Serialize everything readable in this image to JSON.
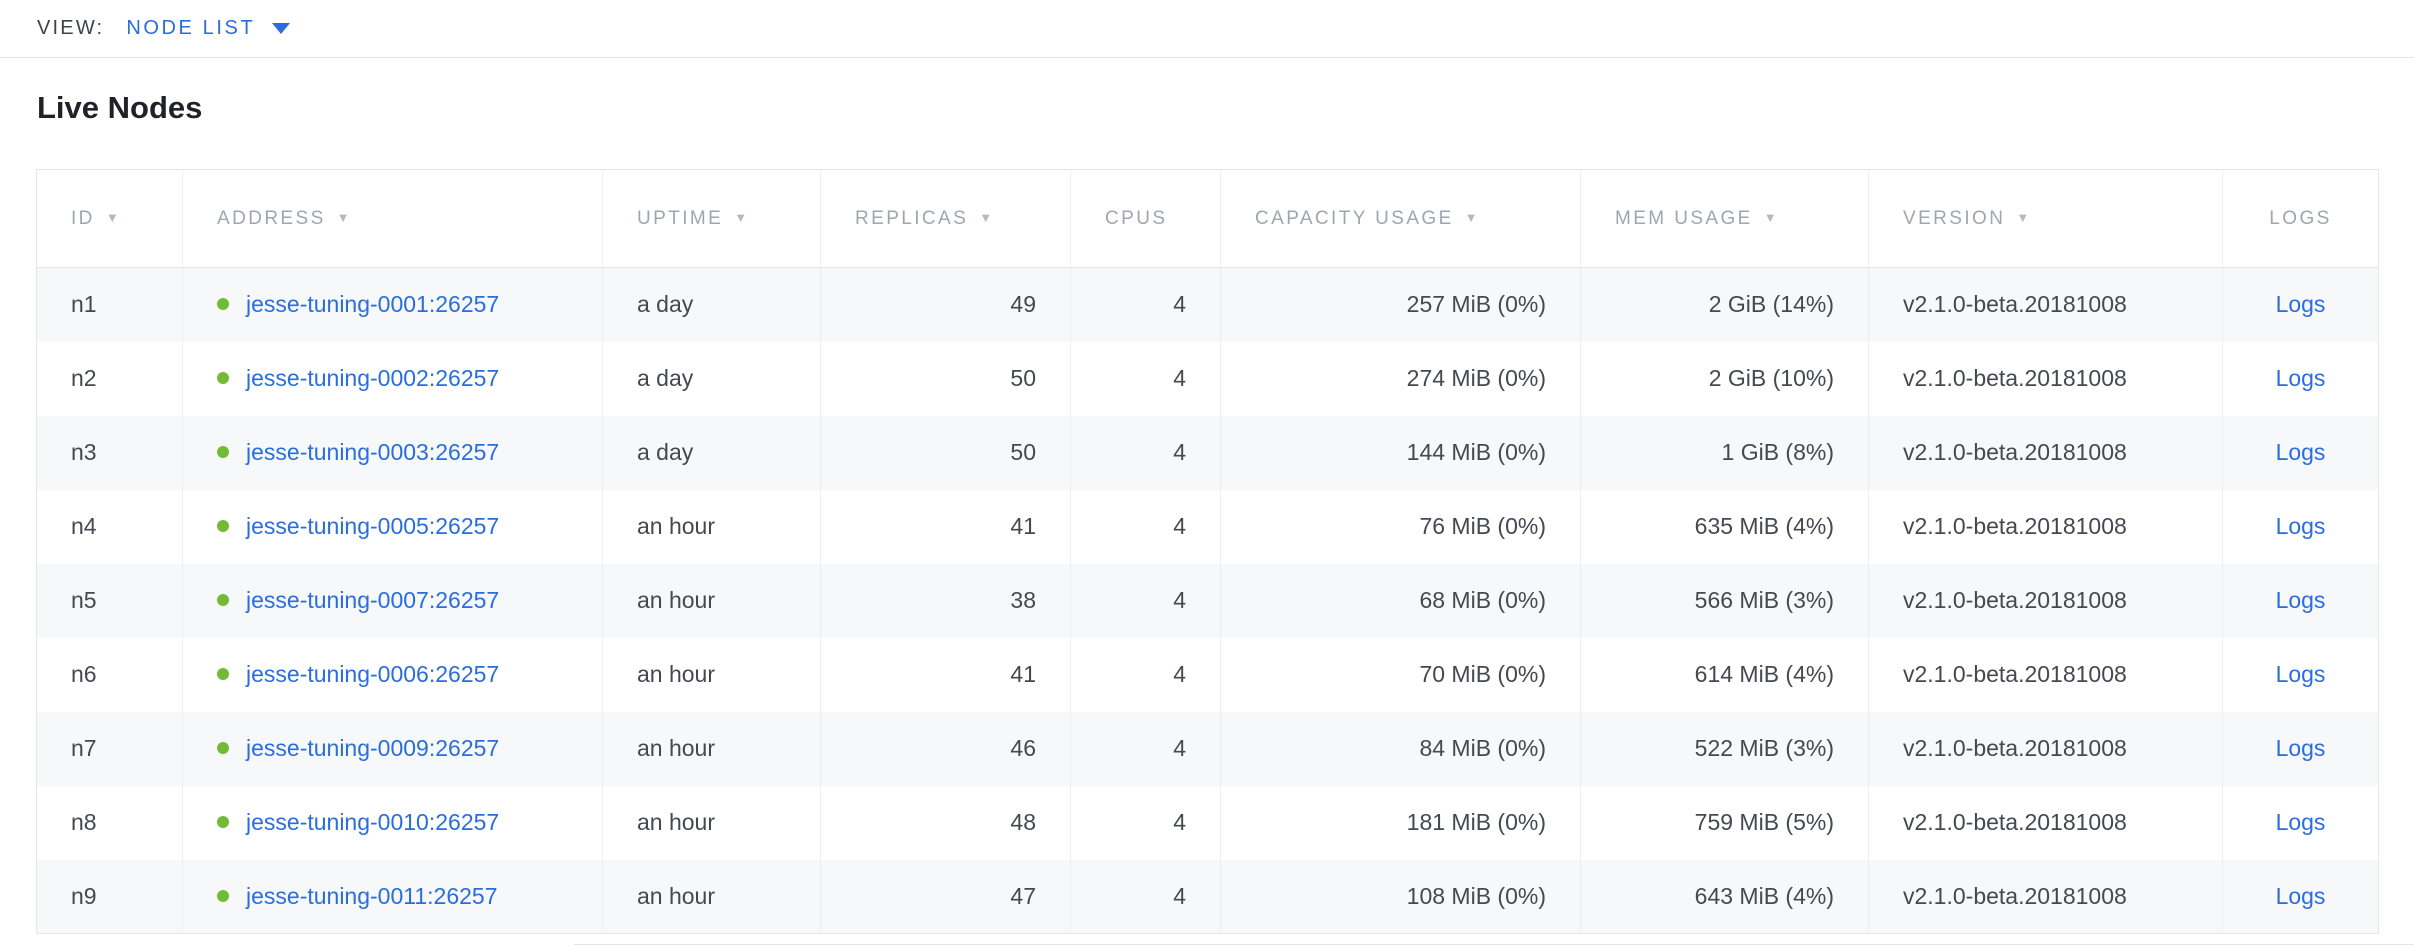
{
  "view_bar": {
    "label": "VIEW:",
    "selected": "NODE LIST"
  },
  "page": {
    "title": "Live Nodes"
  },
  "table": {
    "columns": [
      {
        "field": "id",
        "label": "ID",
        "sortable": true,
        "align": "left",
        "header_align": "left"
      },
      {
        "field": "address",
        "label": "ADDRESS",
        "sortable": true,
        "align": "left",
        "header_align": "left"
      },
      {
        "field": "uptime",
        "label": "UPTIME",
        "sortable": true,
        "align": "left",
        "header_align": "left"
      },
      {
        "field": "replicas",
        "label": "REPLICAS",
        "sortable": true,
        "align": "right",
        "header_align": "left"
      },
      {
        "field": "cpus",
        "label": "CPUS",
        "sortable": false,
        "align": "right",
        "header_align": "left"
      },
      {
        "field": "capacity_usage",
        "label": "CAPACITY USAGE",
        "sortable": true,
        "align": "right",
        "header_align": "left"
      },
      {
        "field": "mem_usage",
        "label": "MEM USAGE",
        "sortable": true,
        "align": "right",
        "header_align": "left"
      },
      {
        "field": "version",
        "label": "VERSION",
        "sortable": true,
        "align": "left",
        "header_align": "left"
      },
      {
        "field": "logs",
        "label": "LOGS",
        "sortable": false,
        "align": "center",
        "header_align": "center"
      }
    ],
    "rows": [
      {
        "id": "n1",
        "address": "jesse-tuning-0001:26257",
        "status": "live",
        "uptime": "a day",
        "replicas": "49",
        "cpus": "4",
        "capacity_usage": "257 MiB (0%)",
        "mem_usage": "2 GiB (14%)",
        "version": "v2.1.0-beta.20181008",
        "logs": "Logs"
      },
      {
        "id": "n2",
        "address": "jesse-tuning-0002:26257",
        "status": "live",
        "uptime": "a day",
        "replicas": "50",
        "cpus": "4",
        "capacity_usage": "274 MiB (0%)",
        "mem_usage": "2 GiB (10%)",
        "version": "v2.1.0-beta.20181008",
        "logs": "Logs"
      },
      {
        "id": "n3",
        "address": "jesse-tuning-0003:26257",
        "status": "live",
        "uptime": "a day",
        "replicas": "50",
        "cpus": "4",
        "capacity_usage": "144 MiB (0%)",
        "mem_usage": "1 GiB (8%)",
        "version": "v2.1.0-beta.20181008",
        "logs": "Logs"
      },
      {
        "id": "n4",
        "address": "jesse-tuning-0005:26257",
        "status": "live",
        "uptime": "an hour",
        "replicas": "41",
        "cpus": "4",
        "capacity_usage": "76 MiB (0%)",
        "mem_usage": "635 MiB (4%)",
        "version": "v2.1.0-beta.20181008",
        "logs": "Logs"
      },
      {
        "id": "n5",
        "address": "jesse-tuning-0007:26257",
        "status": "live",
        "uptime": "an hour",
        "replicas": "38",
        "cpus": "4",
        "capacity_usage": "68 MiB (0%)",
        "mem_usage": "566 MiB (3%)",
        "version": "v2.1.0-beta.20181008",
        "logs": "Logs"
      },
      {
        "id": "n6",
        "address": "jesse-tuning-0006:26257",
        "status": "live",
        "uptime": "an hour",
        "replicas": "41",
        "cpus": "4",
        "capacity_usage": "70 MiB (0%)",
        "mem_usage": "614 MiB (4%)",
        "version": "v2.1.0-beta.20181008",
        "logs": "Logs"
      },
      {
        "id": "n7",
        "address": "jesse-tuning-0009:26257",
        "status": "live",
        "uptime": "an hour",
        "replicas": "46",
        "cpus": "4",
        "capacity_usage": "84 MiB (0%)",
        "mem_usage": "522 MiB (3%)",
        "version": "v2.1.0-beta.20181008",
        "logs": "Logs"
      },
      {
        "id": "n8",
        "address": "jesse-tuning-0010:26257",
        "status": "live",
        "uptime": "an hour",
        "replicas": "48",
        "cpus": "4",
        "capacity_usage": "181 MiB (0%)",
        "mem_usage": "759 MiB (5%)",
        "version": "v2.1.0-beta.20181008",
        "logs": "Logs"
      },
      {
        "id": "n9",
        "address": "jesse-tuning-0011:26257",
        "status": "live",
        "uptime": "an hour",
        "replicas": "47",
        "cpus": "4",
        "capacity_usage": "108 MiB (0%)",
        "mem_usage": "643 MiB (4%)",
        "version": "v2.1.0-beta.20181008",
        "logs": "Logs"
      }
    ]
  },
  "colors": {
    "link_blue": "#2a6ddf",
    "live_dot_green": "#73bb35",
    "header_gray": "#9ea6ae",
    "body_text": "#45494f",
    "zebra_row": "#f7f8fa",
    "border": "#e4e7ea"
  }
}
